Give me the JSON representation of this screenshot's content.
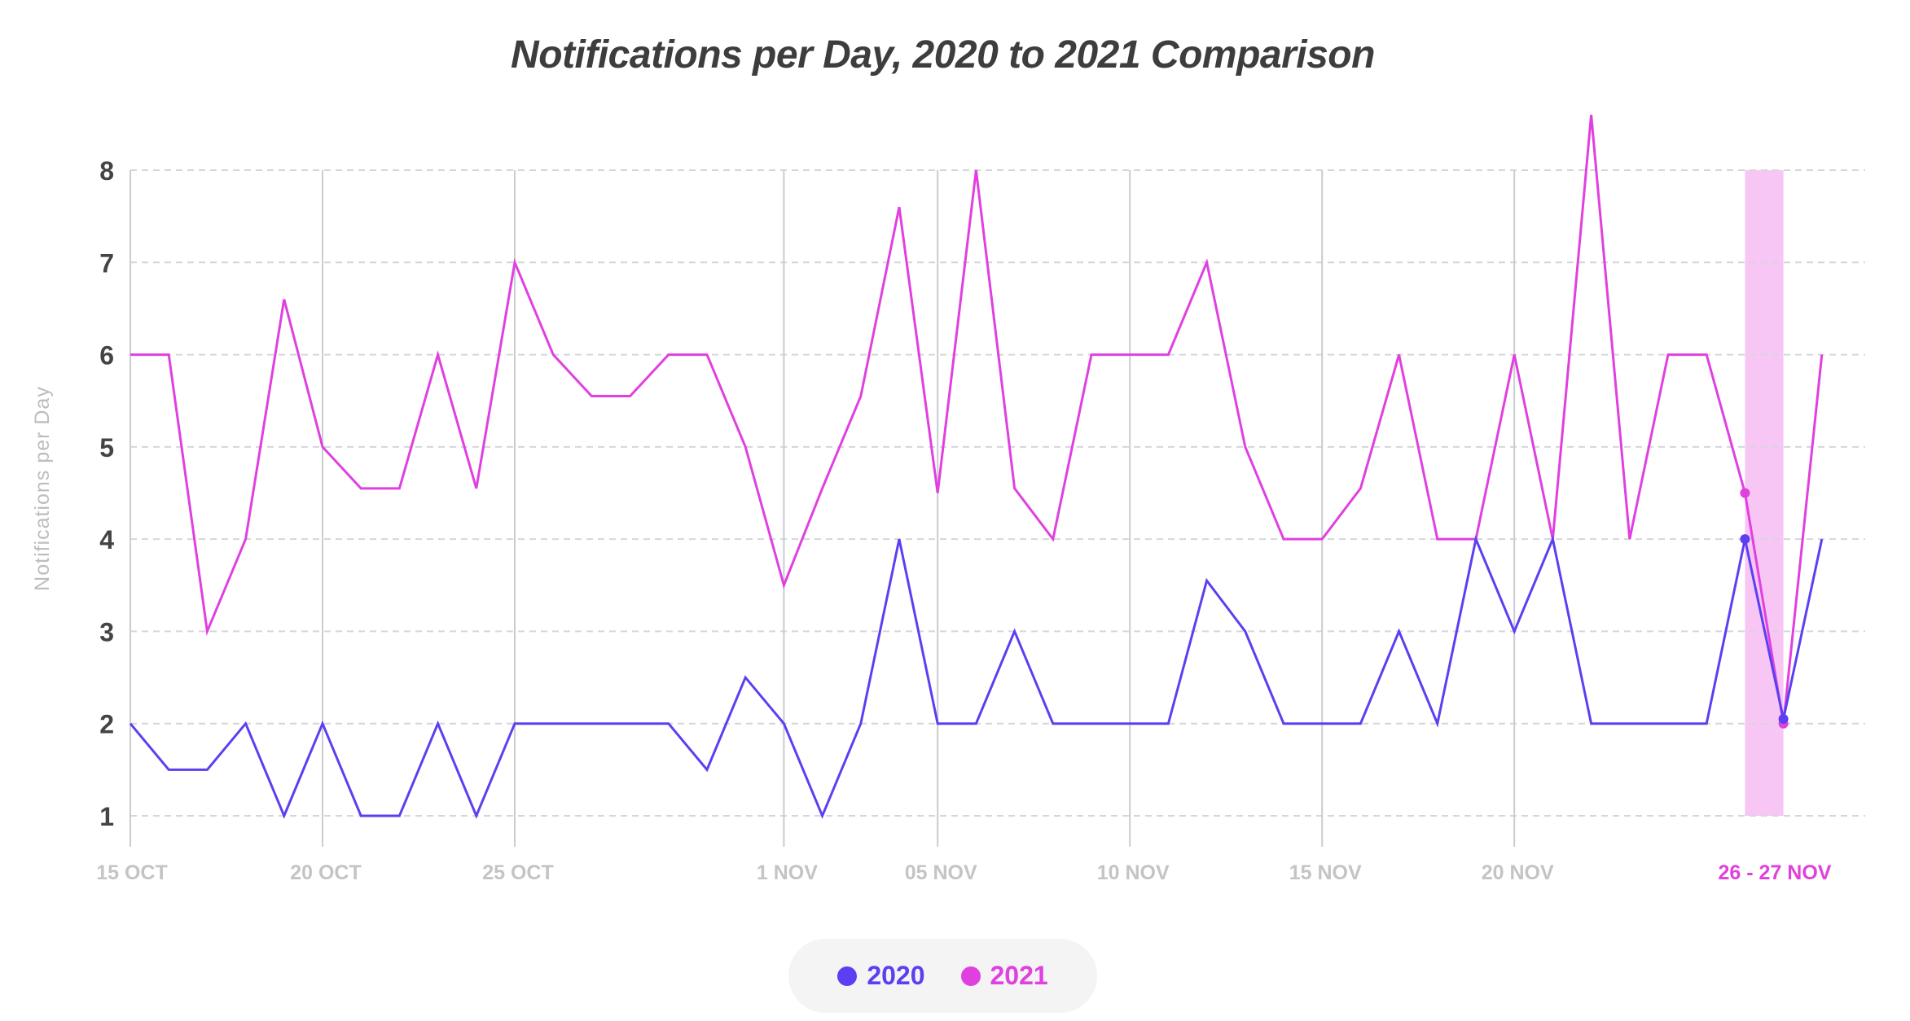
{
  "chart_data": {
    "type": "line",
    "title": "Notifications per Day, 2020 to 2021 Comparison",
    "xlabel": "",
    "ylabel": "Notifications per Day",
    "ylim": [
      1,
      8
    ],
    "yticks": [
      1,
      2,
      3,
      4,
      5,
      6,
      7,
      8
    ],
    "grid": true,
    "legend_position": "bottom-center",
    "x_start": "15 OCT",
    "x_end": "28 NOV",
    "x_tick_labels": [
      {
        "index": 0,
        "label": "15 OCT"
      },
      {
        "index": 5,
        "label": "20 OCT"
      },
      {
        "index": 10,
        "label": "25 OCT"
      },
      {
        "index": 17,
        "label": "1 NOV"
      },
      {
        "index": 21,
        "label": "05 NOV"
      },
      {
        "index": 26,
        "label": "10 NOV"
      },
      {
        "index": 31,
        "label": "15 NOV"
      },
      {
        "index": 36,
        "label": "20 NOV"
      }
    ],
    "highlight": {
      "label": "26 - 27 NOV",
      "from_index": 42,
      "to_index": 43,
      "color": "#f8c6f4",
      "label_color": "#e040dc"
    },
    "series": [
      {
        "name": "2020",
        "color": "#5b3ff2",
        "values": [
          2,
          1.5,
          1.5,
          2,
          1,
          2,
          1,
          1,
          2,
          1,
          2,
          2,
          2,
          2,
          2,
          1.5,
          2.5,
          2,
          1,
          2,
          4,
          2,
          2,
          3,
          2,
          2,
          2,
          2,
          3.55,
          3,
          2,
          2,
          2,
          3,
          2,
          4,
          3,
          4,
          2,
          2,
          2,
          2,
          4,
          2.05,
          4
        ]
      },
      {
        "name": "2021",
        "color": "#e040e0",
        "values": [
          6,
          6,
          3,
          4,
          6.6,
          5,
          4.55,
          4.55,
          6,
          4.55,
          7,
          6,
          5.55,
          5.55,
          6,
          6,
          5,
          3.5,
          4.55,
          5.55,
          7.6,
          4.5,
          8,
          4.55,
          4,
          6,
          6,
          6,
          7,
          5,
          4,
          4,
          4.55,
          6,
          4,
          4,
          6,
          4,
          8.6,
          4,
          6,
          6,
          4.5,
          2,
          6
        ]
      }
    ]
  }
}
